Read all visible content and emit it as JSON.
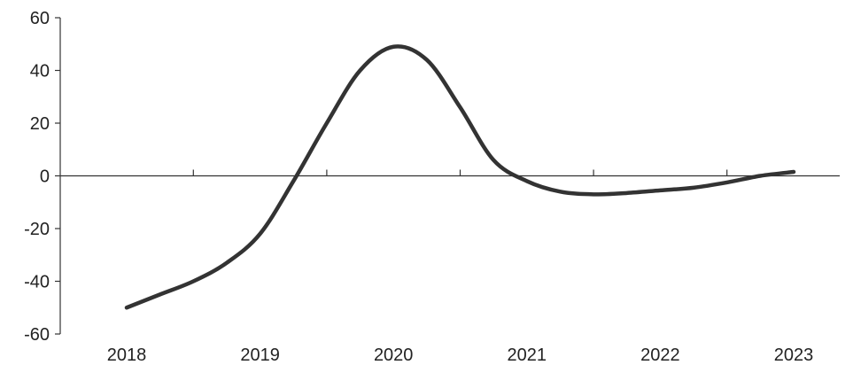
{
  "chart_data": {
    "type": "line",
    "title": "",
    "xlabel": "",
    "ylabel": "",
    "ylim": [
      -60,
      60
    ],
    "yticks": [
      "60",
      "40",
      "20",
      "0",
      "-20",
      "-40",
      "-60"
    ],
    "categories": [
      "2018",
      "2019",
      "2020",
      "2021",
      "2022",
      "2023"
    ],
    "grid": false,
    "legend": "none",
    "series": [
      {
        "color": "#333333",
        "x": [
          2018.0,
          2018.25,
          2018.5,
          2018.75,
          2019.0,
          2019.25,
          2019.5,
          2019.75,
          2020.0,
          2020.25,
          2020.5,
          2020.75,
          2021.0,
          2021.25,
          2021.5,
          2021.75,
          2022.0,
          2022.25,
          2022.5,
          2022.75,
          2023.0
        ],
        "values": [
          -50,
          -45,
          -40,
          -33,
          -22,
          -2,
          20,
          40,
          49,
          44,
          26,
          6,
          -2,
          -6,
          -7,
          -6.5,
          -5.5,
          -4.5,
          -2.5,
          0,
          1.5
        ]
      }
    ]
  }
}
